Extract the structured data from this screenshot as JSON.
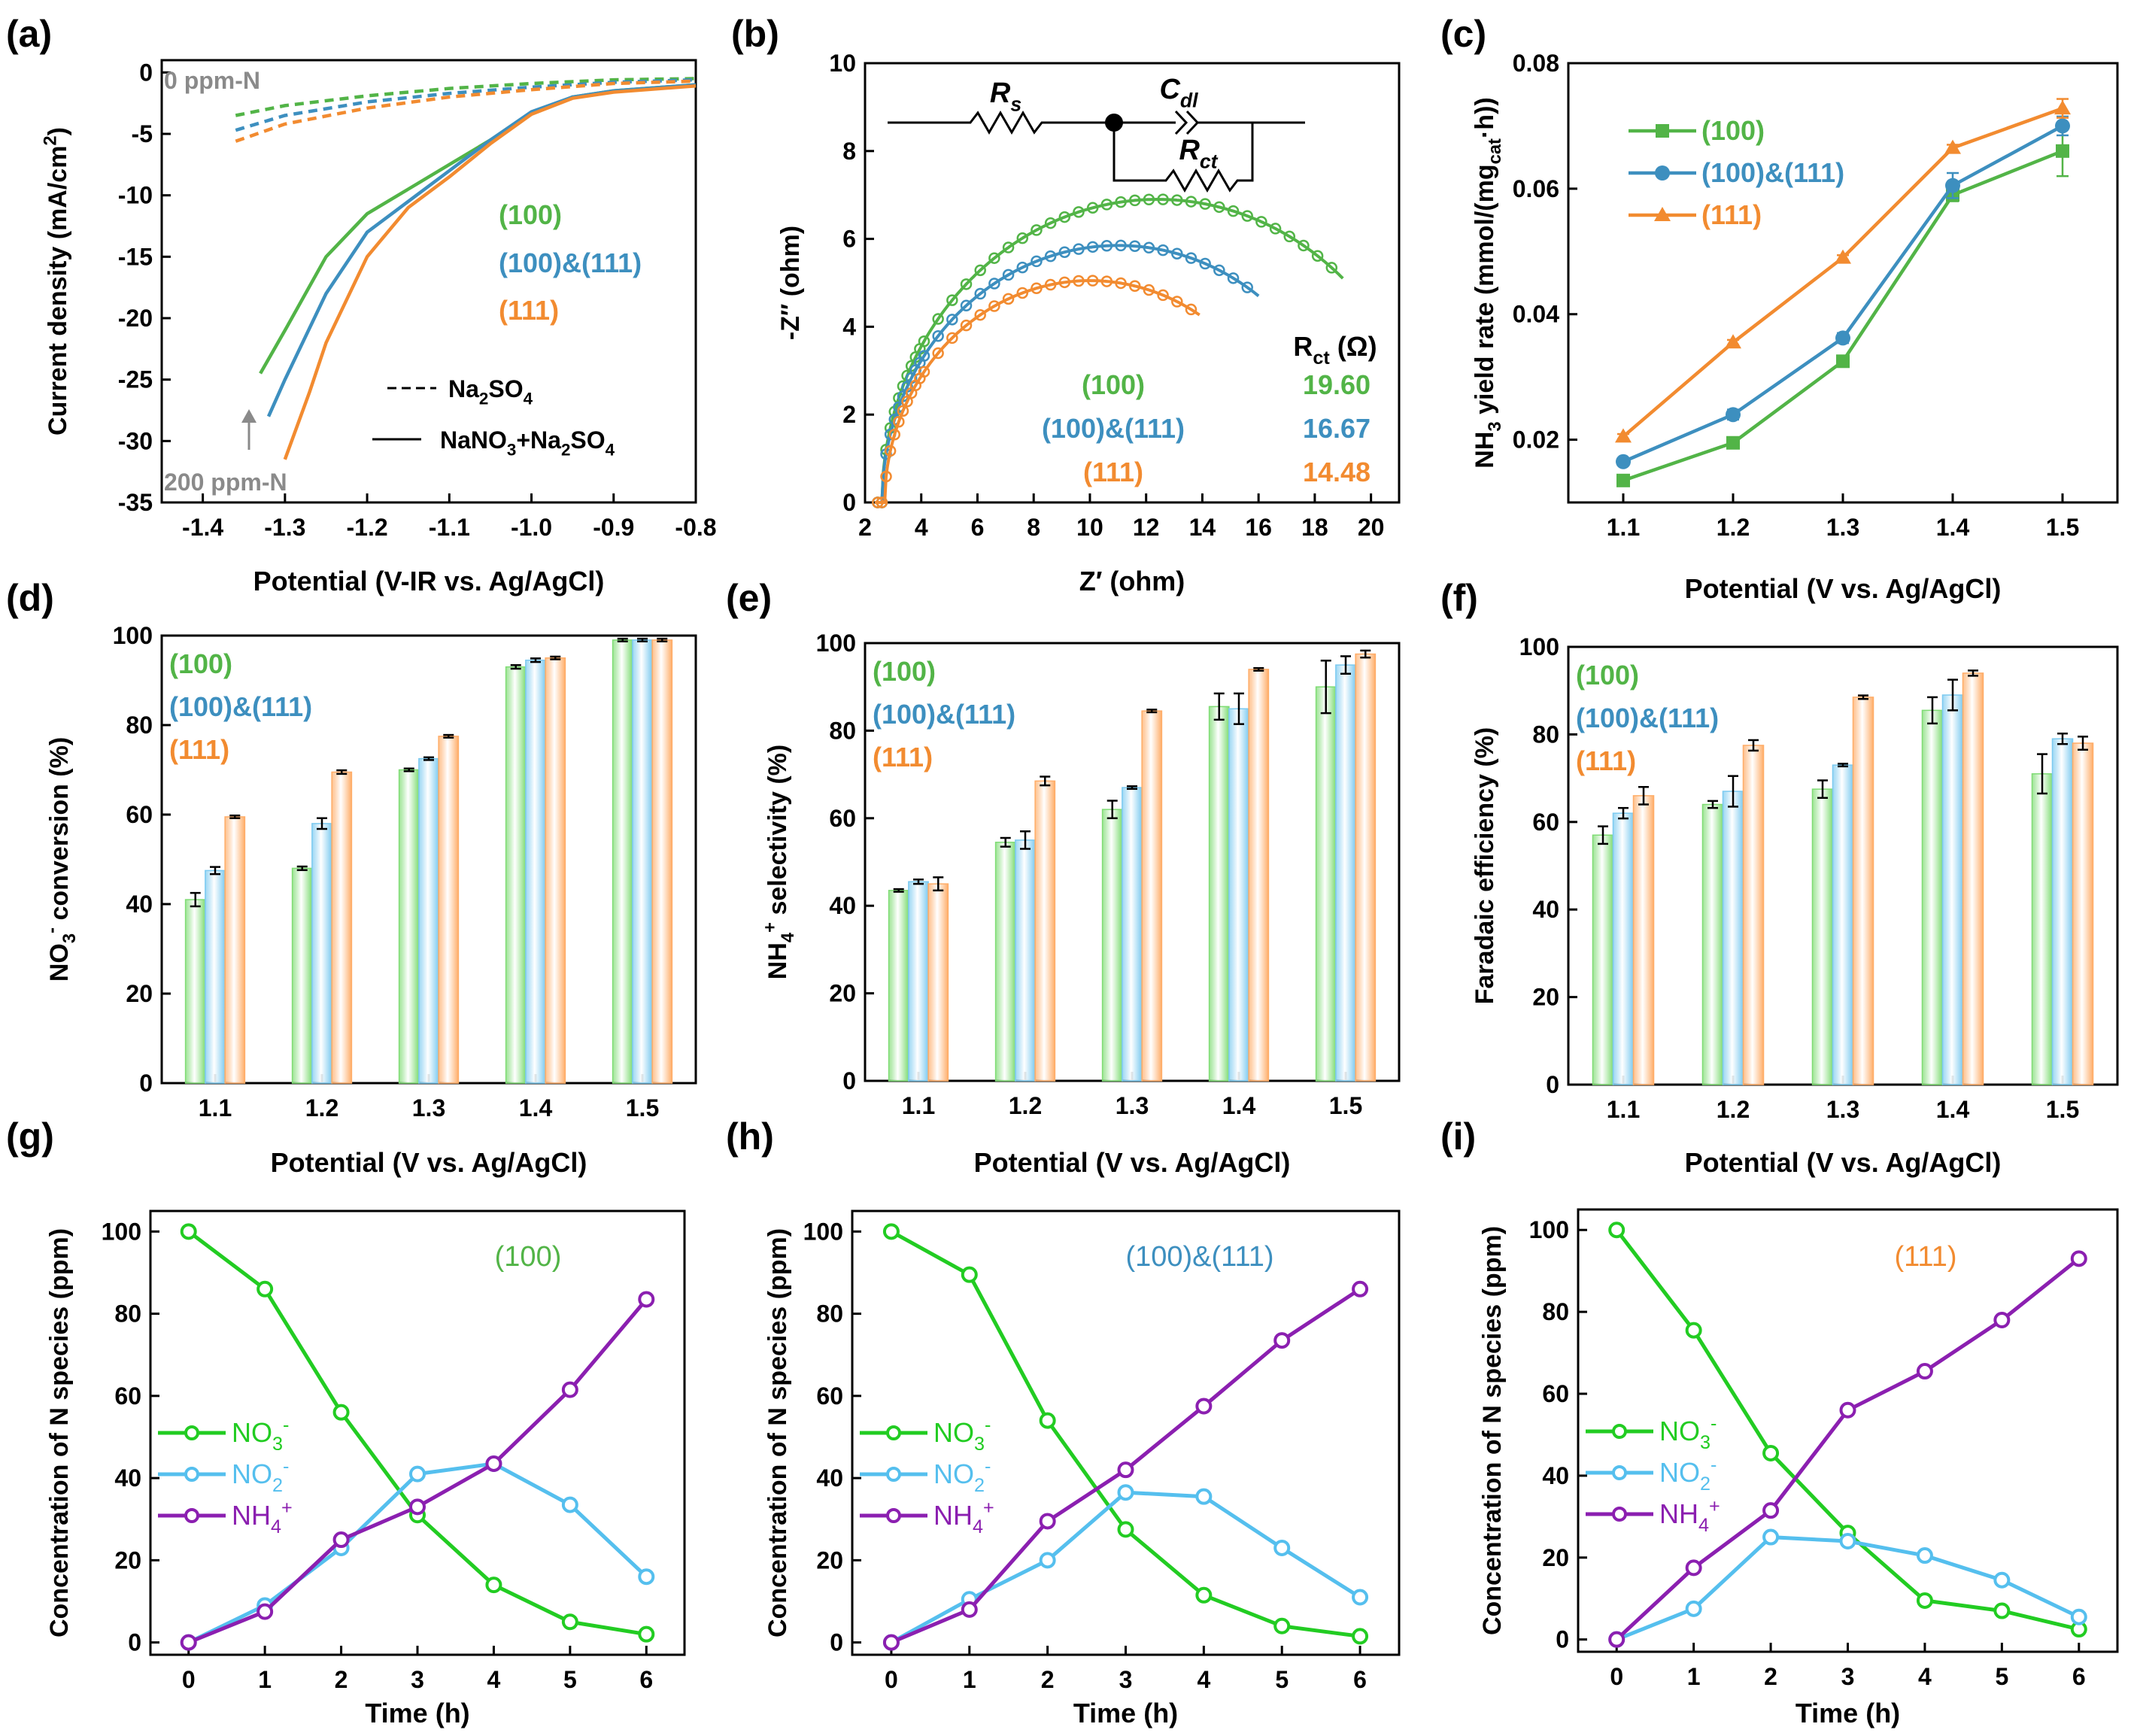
{
  "colors": {
    "c100": "#52b447",
    "c100_111": "#3d8fbf",
    "c111": "#f28b30",
    "green": "#22cc22",
    "blue": "#55bfee",
    "purple": "#8b1fb0",
    "grey": "#8a8a8a",
    "bar100": "#7fdc74",
    "bar100_111": "#7ccaf0",
    "bar111": "#ffad68"
  },
  "chart_data": [
    {
      "panel": "(a)",
      "type": "line",
      "xlabel": "Potential (V-IR vs. Ag/AgCl)",
      "ylabel": "Current density (mA/cm²)",
      "xlim": [
        -1.45,
        -0.8
      ],
      "ylim": [
        -35,
        1
      ],
      "xticks": [
        -1.4,
        -1.3,
        -1.2,
        -1.1,
        -1.0,
        -0.9,
        -0.8
      ],
      "xtick_labels": [
        "-1.4",
        "-1.3",
        "-1.2",
        "-1.1",
        "-1.0",
        "-0.9",
        "-0.8"
      ],
      "yticks": [
        0,
        -5,
        -10,
        -15,
        -20,
        -25,
        -30,
        -35
      ],
      "ytick_labels": [
        "0",
        "-5",
        "-10",
        "-15",
        "-20",
        "-25",
        "-30",
        "-35"
      ],
      "legend": [
        "(100)",
        "(100)&(111)",
        "(111)"
      ],
      "style_legend": [
        "Na₂SO₄",
        "NaNO₃+Na₂SO₄"
      ],
      "annotations": [
        "0 ppm-N",
        "200 ppm-N"
      ],
      "series": [
        {
          "name": "(100)",
          "electrolyte": "Na₂SO₄",
          "dashed": true,
          "x": [
            -1.36,
            -1.3,
            -1.2,
            -1.1,
            -1.0,
            -0.9,
            -0.8
          ],
          "y": [
            -3.5,
            -2.7,
            -1.9,
            -1.3,
            -0.9,
            -0.6,
            -0.5
          ]
        },
        {
          "name": "(100)&(111)",
          "electrolyte": "Na₂SO₄",
          "dashed": true,
          "x": [
            -1.36,
            -1.3,
            -1.2,
            -1.1,
            -1.0,
            -0.9,
            -0.8
          ],
          "y": [
            -4.7,
            -3.5,
            -2.4,
            -1.7,
            -1.2,
            -0.8,
            -0.6
          ]
        },
        {
          "name": "(111)",
          "electrolyte": "Na₂SO₄",
          "dashed": true,
          "x": [
            -1.36,
            -1.3,
            -1.2,
            -1.1,
            -1.0,
            -0.9,
            -0.8
          ],
          "y": [
            -5.6,
            -4.2,
            -2.9,
            -2.0,
            -1.4,
            -0.9,
            -0.7
          ]
        },
        {
          "name": "(100)",
          "electrolyte": "NaNO₃+Na₂SO₄",
          "dashed": false,
          "x": [
            -1.33,
            -1.3,
            -1.25,
            -1.2,
            -1.15,
            -1.1,
            -1.05,
            -1.0,
            -0.95,
            -0.9,
            -0.8
          ],
          "y": [
            -24.5,
            -21,
            -15,
            -11.5,
            -9.5,
            -7.5,
            -5.5,
            -3.3,
            -2.0,
            -1.5,
            -1.0
          ]
        },
        {
          "name": "(100)&(111)",
          "electrolyte": "NaNO₃+Na₂SO₄",
          "dashed": false,
          "x": [
            -1.32,
            -1.3,
            -1.25,
            -1.2,
            -1.15,
            -1.1,
            -1.05,
            -1.0,
            -0.95,
            -0.9,
            -0.8
          ],
          "y": [
            -28,
            -25,
            -18,
            -13,
            -10.5,
            -8.0,
            -5.5,
            -3.2,
            -2.0,
            -1.5,
            -1.0
          ]
        },
        {
          "name": "(111)",
          "electrolyte": "NaNO₃+Na₂SO₄",
          "dashed": false,
          "x": [
            -1.3,
            -1.27,
            -1.25,
            -1.2,
            -1.15,
            -1.1,
            -1.05,
            -1.0,
            -0.95,
            -0.9,
            -0.8
          ],
          "y": [
            -31.5,
            -26,
            -22,
            -15,
            -11,
            -8.5,
            -5.8,
            -3.4,
            -2.1,
            -1.6,
            -1.1
          ]
        }
      ]
    },
    {
      "panel": "(b)",
      "type": "scatter",
      "xlabel": "Z′ (ohm)",
      "ylabel": "-Z″ (ohm)",
      "xlim": [
        2,
        21
      ],
      "ylim": [
        0,
        10
      ],
      "xticks": [
        2,
        4,
        6,
        8,
        10,
        12,
        14,
        16,
        18,
        20
      ],
      "yticks": [
        0,
        2,
        4,
        6,
        8,
        10
      ],
      "legend": [
        "(100)",
        "(100)&(111)",
        "(111)"
      ],
      "circuit_labels": [
        "Rs",
        "Cdl",
        "Rct"
      ],
      "rct_header": "Rct (Ω)",
      "rct_values": [
        "19.60",
        "16.67",
        "14.48"
      ],
      "series": [
        {
          "name": "(100)",
          "center": 12.4,
          "radius": 9.8,
          "h": 6.9,
          "x_end": 19.0
        },
        {
          "name": "(100)&(111)",
          "center": 11.0,
          "radius": 8.4,
          "h": 5.85,
          "x_end": 16.0
        },
        {
          "name": "(111)",
          "center": 10.0,
          "radius": 7.3,
          "h": 5.05,
          "x_end": 13.9
        }
      ]
    },
    {
      "panel": "(c)",
      "type": "line",
      "xlabel": "Potential (V vs. Ag/AgCl)",
      "ylabel": "NH₃ yield rate (mmol/(mg_cat·h))",
      "xlim": [
        1.05,
        1.55
      ],
      "ylim": [
        0.01,
        0.08
      ],
      "categories": [
        "1.1",
        "1.2",
        "1.3",
        "1.4",
        "1.5"
      ],
      "yticks": [
        0.02,
        0.04,
        0.06,
        0.08
      ],
      "ytick_labels": [
        "0.02",
        "0.04",
        "0.06",
        "0.08"
      ],
      "series": [
        {
          "name": "(100)",
          "values": [
            0.0135,
            0.0195,
            0.0325,
            0.059,
            0.066
          ],
          "err": [
            0.0004,
            0.0004,
            0.0006,
            0.001,
            0.004
          ],
          "marker": "square"
        },
        {
          "name": "(100)&(111)",
          "values": [
            0.0165,
            0.024,
            0.0362,
            0.0605,
            0.07
          ],
          "err": [
            0.0004,
            0.0008,
            0.0008,
            0.002,
            0.0015
          ],
          "marker": "circle"
        },
        {
          "name": "(111)",
          "values": [
            0.0205,
            0.0355,
            0.049,
            0.0665,
            0.0728
          ],
          "err": [
            0.0004,
            0.0004,
            0.0004,
            0.0005,
            0.0015
          ],
          "marker": "triangle"
        }
      ]
    },
    {
      "panel": "(d)",
      "type": "bar",
      "xlabel": "Potential (V vs. Ag/AgCl)",
      "ylabel": "NO₃⁻ conversion (%)",
      "ylim": [
        0,
        100
      ],
      "yticks": [
        0,
        20,
        40,
        60,
        80,
        100
      ],
      "categories": [
        "1.1",
        "1.2",
        "1.3",
        "1.4",
        "1.5"
      ],
      "legend": [
        "(100)",
        "(100)&(111)",
        "(111)"
      ],
      "series": [
        {
          "name": "(100)",
          "values": [
            41,
            48,
            70,
            93,
            99
          ],
          "err": [
            1.5,
            0.4,
            0.3,
            0.4,
            0.3
          ]
        },
        {
          "name": "(100)&(111)",
          "values": [
            47.5,
            58,
            72.5,
            94.5,
            99
          ],
          "err": [
            0.8,
            1.2,
            0.3,
            0.4,
            0.3
          ]
        },
        {
          "name": "(111)",
          "values": [
            59.5,
            69.5,
            77.5,
            95,
            99
          ],
          "err": [
            0.3,
            0.4,
            0.3,
            0.3,
            0.3
          ]
        }
      ]
    },
    {
      "panel": "(e)",
      "type": "bar",
      "xlabel": "Potential (V vs. Ag/AgCl)",
      "ylabel": "NH₄⁺ selectivity (%)",
      "ylim": [
        0,
        100
      ],
      "yticks": [
        0,
        20,
        40,
        60,
        80,
        100
      ],
      "categories": [
        "1.1",
        "1.2",
        "1.3",
        "1.4",
        "1.5"
      ],
      "legend": [
        "(100)",
        "(100)&(111)",
        "(111)"
      ],
      "series": [
        {
          "name": "(100)",
          "values": [
            43.5,
            54.5,
            62,
            85.5,
            90
          ],
          "err": [
            0.3,
            1,
            2,
            3,
            6
          ]
        },
        {
          "name": "(100)&(111)",
          "values": [
            45.5,
            55,
            67,
            85,
            95
          ],
          "err": [
            0.5,
            2,
            0.3,
            3.5,
            2
          ]
        },
        {
          "name": "(111)",
          "values": [
            45,
            68.5,
            84.5,
            94,
            97.5
          ],
          "err": [
            1.5,
            1,
            0.3,
            0.3,
            0.8
          ]
        }
      ]
    },
    {
      "panel": "(f)",
      "type": "bar",
      "xlabel": "Potential (V vs. Ag/AgCl)",
      "ylabel": "Faradaic efficiency (%)",
      "ylim": [
        0,
        100
      ],
      "yticks": [
        0,
        20,
        40,
        60,
        80,
        100
      ],
      "categories": [
        "1.1",
        "1.2",
        "1.3",
        "1.4",
        "1.5"
      ],
      "legend": [
        "(100)",
        "(100)&(111)",
        "(111)"
      ],
      "series": [
        {
          "name": "(100)",
          "values": [
            57,
            64,
            67.5,
            85.5,
            71
          ],
          "err": [
            2,
            0.8,
            2,
            3,
            4.5
          ]
        },
        {
          "name": "(100)&(111)",
          "values": [
            62,
            67,
            73,
            89,
            79
          ],
          "err": [
            1.2,
            3.5,
            0.3,
            3.5,
            1.2
          ]
        },
        {
          "name": "(111)",
          "values": [
            66,
            77.5,
            88.5,
            94,
            78
          ],
          "err": [
            2,
            1.2,
            0.4,
            0.6,
            1.5
          ]
        }
      ]
    },
    {
      "panel": "(g)",
      "type": "line",
      "xlabel": "Time (h)",
      "ylabel": "Concentration of N species (ppm)",
      "xlim": [
        -0.5,
        6.5
      ],
      "ylim": [
        -3,
        105
      ],
      "x": [
        0,
        1,
        2,
        3,
        4,
        5,
        6
      ],
      "yticks": [
        0,
        20,
        40,
        60,
        80,
        100
      ],
      "label": "(100)",
      "series": [
        {
          "name": "NO₃⁻",
          "values": [
            100,
            86,
            56,
            31,
            14,
            5,
            2
          ]
        },
        {
          "name": "NO₂⁻",
          "values": [
            0,
            9,
            23,
            41,
            43.5,
            33.5,
            16
          ]
        },
        {
          "name": "NH₄⁺",
          "values": [
            0,
            7.5,
            25,
            33,
            43.5,
            61.5,
            83.5
          ]
        }
      ]
    },
    {
      "panel": "(h)",
      "type": "line",
      "xlabel": "Time (h)",
      "ylabel": "Concentration of N species (ppm)",
      "xlim": [
        -0.5,
        6.5
      ],
      "ylim": [
        -3,
        105
      ],
      "x": [
        0,
        1,
        2,
        3,
        4,
        5,
        6
      ],
      "yticks": [
        0,
        20,
        40,
        60,
        80,
        100
      ],
      "label": "(100)&(111)",
      "series": [
        {
          "name": "NO₃⁻",
          "values": [
            100,
            89.5,
            54,
            27.5,
            11.5,
            4,
            1.5
          ]
        },
        {
          "name": "NO₂⁻",
          "values": [
            0,
            10.5,
            20,
            36.5,
            35.5,
            23,
            11
          ]
        },
        {
          "name": "NH₄⁺",
          "values": [
            0,
            8,
            29.5,
            42,
            57.5,
            73.5,
            86
          ]
        }
      ]
    },
    {
      "panel": "(i)",
      "type": "line",
      "xlabel": "Time (h)",
      "ylabel": "Concentration of N species (ppm)",
      "xlim": [
        -0.5,
        6.5
      ],
      "ylim": [
        -3,
        105
      ],
      "x": [
        0,
        1,
        2,
        3,
        4,
        5,
        6
      ],
      "yticks": [
        0,
        20,
        40,
        60,
        80,
        100
      ],
      "label": "(111)",
      "series": [
        {
          "name": "NO₃⁻",
          "values": [
            100,
            75.5,
            45.5,
            26,
            9.5,
            7,
            2.5
          ]
        },
        {
          "name": "NO₂⁻",
          "values": [
            0,
            7.5,
            25,
            24,
            20.5,
            14.5,
            5.5
          ]
        },
        {
          "name": "NH₄⁺",
          "values": [
            0,
            17.5,
            31.5,
            56,
            65.5,
            78,
            93
          ]
        }
      ]
    }
  ]
}
